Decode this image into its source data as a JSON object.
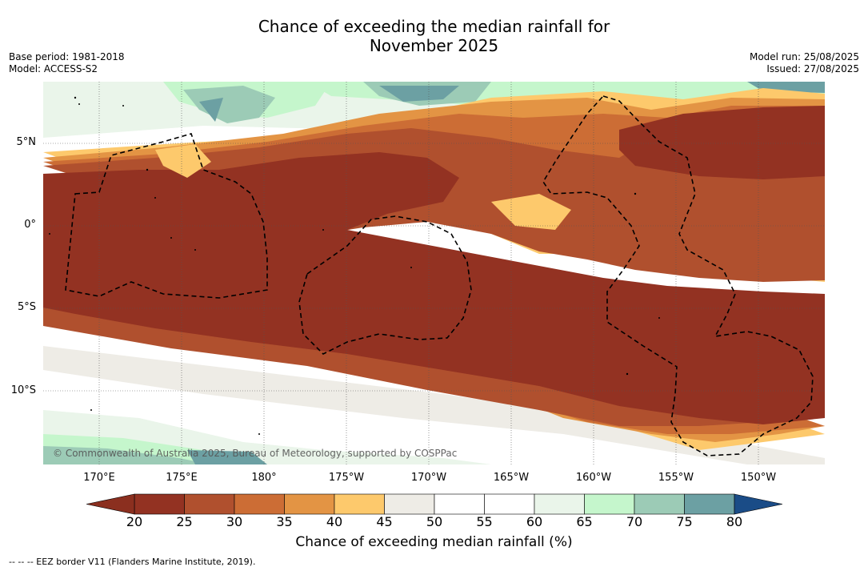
{
  "title_line1": "Chance of exceeding the median rainfall for",
  "title_line2": "November 2025",
  "base_period": "Base period: 1981-2018",
  "model": "Model: ACCESS-S2",
  "model_run": "Model run: 25/08/2025",
  "issued": "Issued: 27/08/2025",
  "credit": "© Commonwealth of Australia 2025, Bureau of Meteorology, supported by COSPPac",
  "lat_labels": [
    "5°N",
    "0°",
    "5°S",
    "10°S"
  ],
  "lon_labels": [
    "170°E",
    "175°E",
    "180°",
    "175°W",
    "170°W",
    "165°W",
    "160°W",
    "155°W",
    "150°W"
  ],
  "colorbar": {
    "ticks": [
      "20",
      "25",
      "30",
      "35",
      "40",
      "45",
      "50",
      "55",
      "60",
      "65",
      "70",
      "75",
      "80"
    ],
    "colors": [
      "#933222",
      "#b0502e",
      "#cc6d35",
      "#e39444",
      "#fdc96c",
      "#eeece6",
      "#ffffff",
      "#ffffff",
      "#eaf5ea",
      "#c5f6cc",
      "#9ccbb6",
      "#6ca0a3",
      "#437b95"
    ],
    "under_color": "#8b2f1f",
    "over_color": "#1a4c87",
    "label": "Chance of exceeding median rainfall (%)"
  },
  "legend_footer": "--  --  -- EEZ border V11 (Flanders Marine Institute, 2019)."
}
